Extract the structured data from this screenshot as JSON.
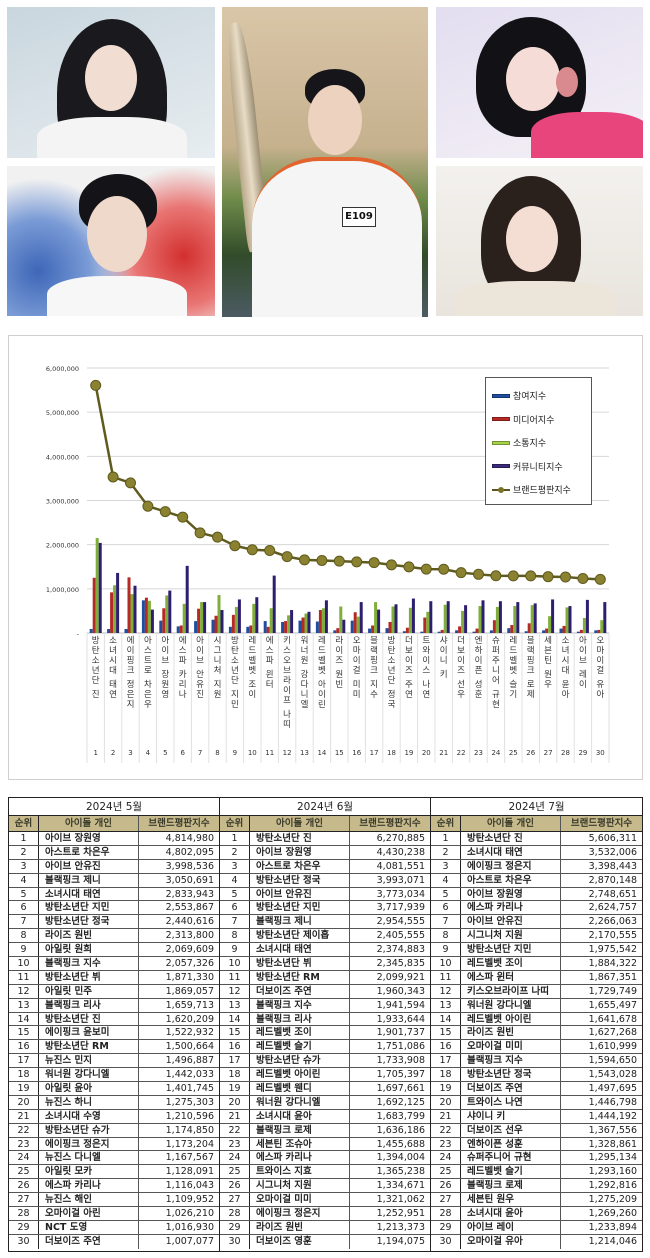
{
  "photos": [
    {
      "id": "photo-top-left",
      "description": "woman with long dark hair and bangs, white shirt"
    },
    {
      "id": "photo-bottom-left",
      "description": "man in white t-shirt with blue and red paint background"
    },
    {
      "id": "photo-center",
      "description": "man holding torch, white jersey",
      "bib": "E109"
    },
    {
      "id": "photo-top-right",
      "description": "woman with dark hair and pink flower accessory"
    },
    {
      "id": "photo-bottom-right",
      "description": "woman with bangs making V sign"
    }
  ],
  "legend": [
    {
      "label": "참여지수",
      "color": "#1f4e9e"
    },
    {
      "label": "미디어지수",
      "color": "#b52a24"
    },
    {
      "label": "소통지수",
      "color": "#7fae3a"
    },
    {
      "label": "커뮤니티지수",
      "color": "#3b2a7a"
    },
    {
      "label": "브랜드평판지수",
      "color": "#7a7326"
    }
  ],
  "chart_data": {
    "type": "bar",
    "title": "",
    "xlabel": "",
    "ylabel": "",
    "ylim": [
      0,
      6000000
    ],
    "yticks": [
      "-",
      "1,000,000",
      "2,000,000",
      "3,000,000",
      "4,000,000",
      "5,000,000",
      "6,000,000"
    ],
    "grid": true,
    "legend_position": "upper right",
    "categories": [
      "방탄소년단 진",
      "소녀시대 태연",
      "에이핑크 정은지",
      "아스트로 차은우",
      "아이브 장원영",
      "에스파 카리나",
      "아이브 안유진",
      "시그니처 지원",
      "방탄소년단 지민",
      "레드벨벳 조이",
      "에스파 윈터",
      "키스오브라이프 나띠",
      "워너원 강다니엘",
      "레드벨벳 아이린",
      "라이즈 원빈",
      "오마이걸 미미",
      "블랙핑크 지수",
      "방탄소년단 정국",
      "더보이즈 주연",
      "트와이스 나연",
      "샤이니 키",
      "더보이즈 선우",
      "엔하이픈 성훈",
      "슈퍼주니어 규현",
      "레드벨벳 슬기",
      "블랙핑크 로제",
      "세븐틴 원우",
      "소녀시대 윤아",
      "아이브 레이",
      "오마이걸 유아"
    ],
    "category_numbers": [
      "1",
      "2",
      "3",
      "4",
      "5",
      "6",
      "7",
      "8",
      "9",
      "10",
      "11",
      "12",
      "13",
      "14",
      "15",
      "16",
      "17",
      "18",
      "19",
      "20",
      "21",
      "22",
      "23",
      "24",
      "25",
      "26",
      "27",
      "28",
      "29",
      "30"
    ],
    "series": [
      {
        "name": "참여지수",
        "type": "bar",
        "values": [
          90000,
          90000,
          90000,
          740000,
          280000,
          150000,
          270000,
          300000,
          140000,
          140000,
          270000,
          250000,
          280000,
          260000,
          60000,
          280000,
          100000,
          110000,
          40000,
          30000,
          30000,
          60000,
          30000,
          60000,
          110000,
          40000,
          60000,
          100000,
          30000,
          60000
        ]
      },
      {
        "name": "미디어지수",
        "type": "bar",
        "values": [
          1250000,
          920000,
          1260000,
          800000,
          560000,
          170000,
          550000,
          390000,
          410000,
          170000,
          140000,
          270000,
          350000,
          520000,
          110000,
          470000,
          170000,
          250000,
          120000,
          350000,
          70000,
          150000,
          100000,
          290000,
          180000,
          220000,
          100000,
          160000,
          70000,
          70000
        ]
      },
      {
        "name": "소통지수",
        "type": "bar",
        "values": [
          2150000,
          1080000,
          880000,
          730000,
          850000,
          660000,
          700000,
          860000,
          590000,
          660000,
          560000,
          400000,
          440000,
          560000,
          600000,
          370000,
          700000,
          600000,
          570000,
          480000,
          640000,
          500000,
          610000,
          590000,
          610000,
          630000,
          380000,
          580000,
          340000,
          290000
        ]
      },
      {
        "name": "커뮤니티지수",
        "type": "bar",
        "values": [
          2040000,
          1360000,
          1070000,
          530000,
          960000,
          1520000,
          700000,
          520000,
          760000,
          810000,
          1300000,
          520000,
          480000,
          740000,
          300000,
          700000,
          530000,
          650000,
          780000,
          720000,
          720000,
          630000,
          740000,
          720000,
          700000,
          670000,
          760000,
          610000,
          750000,
          700000
        ]
      },
      {
        "name": "브랜드평판지수",
        "type": "line",
        "values": [
          5606311,
          3532006,
          3398443,
          2870148,
          2748651,
          2624757,
          2266063,
          2170555,
          1975542,
          1884322,
          1867351,
          1729749,
          1655497,
          1641678,
          1627268,
          1610999,
          1594650,
          1543028,
          1497695,
          1446798,
          1444192,
          1367556,
          1328861,
          1295134,
          1293160,
          1292816,
          1275209,
          1269260,
          1233894,
          1214046
        ]
      }
    ]
  },
  "table": {
    "columns": [
      "순위",
      "아이돌 개인",
      "브랜드평판지수"
    ],
    "months": [
      {
        "title": "2024년 5월",
        "rows": [
          [
            "1",
            "아이브 장원영",
            "4,814,980"
          ],
          [
            "2",
            "아스트로 차은우",
            "4,802,095"
          ],
          [
            "3",
            "아이브 안유진",
            "3,998,536"
          ],
          [
            "4",
            "블랙핑크 제니",
            "3,050,691"
          ],
          [
            "5",
            "소녀시대 태연",
            "2,833,943"
          ],
          [
            "6",
            "방탄소년단 지민",
            "2,553,867"
          ],
          [
            "7",
            "방탄소년단 정국",
            "2,440,616"
          ],
          [
            "8",
            "라이즈 원빈",
            "2,313,800"
          ],
          [
            "9",
            "아일릿 원희",
            "2,069,609"
          ],
          [
            "10",
            "블랙핑크 지수",
            "2,057,326"
          ],
          [
            "11",
            "방탄소년단 뷔",
            "1,871,330"
          ],
          [
            "12",
            "아일릿 민주",
            "1,869,057"
          ],
          [
            "13",
            "블랙핑크 리사",
            "1,659,713"
          ],
          [
            "14",
            "방탄소년단 진",
            "1,620,209"
          ],
          [
            "15",
            "에이핑크 윤보미",
            "1,522,932"
          ],
          [
            "16",
            "방탄소년단 RM",
            "1,500,664"
          ],
          [
            "17",
            "뉴진스 민지",
            "1,496,887"
          ],
          [
            "18",
            "워너원 강다니엘",
            "1,442,033"
          ],
          [
            "19",
            "아일릿 윤아",
            "1,401,745"
          ],
          [
            "20",
            "뉴진스 하니",
            "1,275,303"
          ],
          [
            "21",
            "소녀시대 수영",
            "1,210,596"
          ],
          [
            "22",
            "방탄소년단 슈가",
            "1,174,850"
          ],
          [
            "23",
            "에이핑크 정은지",
            "1,173,204"
          ],
          [
            "24",
            "뉴진스 다니엘",
            "1,167,567"
          ],
          [
            "25",
            "아일릿 모카",
            "1,128,091"
          ],
          [
            "26",
            "에스파 카리나",
            "1,116,043"
          ],
          [
            "27",
            "뉴진스 해인",
            "1,109,952"
          ],
          [
            "28",
            "오마이걸 아린",
            "1,026,210"
          ],
          [
            "29",
            "NCT 도영",
            "1,016,930"
          ],
          [
            "30",
            "더보이즈 주연",
            "1,007,077"
          ]
        ]
      },
      {
        "title": "2024년 6월",
        "rows": [
          [
            "1",
            "방탄소년단 진",
            "6,270,885"
          ],
          [
            "2",
            "아이브 장원영",
            "4,430,238"
          ],
          [
            "3",
            "아스트로 차은우",
            "4,081,551"
          ],
          [
            "4",
            "방탄소년단 정국",
            "3,993,071"
          ],
          [
            "5",
            "아이브 안유진",
            "3,773,034"
          ],
          [
            "6",
            "방탄소년단 지민",
            "3,717,939"
          ],
          [
            "7",
            "블랙핑크 제니",
            "2,954,555"
          ],
          [
            "8",
            "방탄소년단 제이홉",
            "2,405,555"
          ],
          [
            "9",
            "소녀시대 태연",
            "2,374,883"
          ],
          [
            "10",
            "방탄소년단 뷔",
            "2,345,835"
          ],
          [
            "11",
            "방탄소년단 RM",
            "2,099,921"
          ],
          [
            "12",
            "더보이즈 주연",
            "1,960,343"
          ],
          [
            "13",
            "블랙핑크 지수",
            "1,941,594"
          ],
          [
            "14",
            "블랙핑크 리사",
            "1,933,644"
          ],
          [
            "15",
            "레드벨벳 조이",
            "1,901,737"
          ],
          [
            "16",
            "레드벨벳 슬기",
            "1,751,086"
          ],
          [
            "17",
            "방탄소년단 슈가",
            "1,733,908"
          ],
          [
            "18",
            "레드벨벳 아이린",
            "1,705,397"
          ],
          [
            "19",
            "레드벨벳 웬디",
            "1,697,661"
          ],
          [
            "20",
            "워너원 강다니엘",
            "1,692,125"
          ],
          [
            "21",
            "소녀시대 윤아",
            "1,683,799"
          ],
          [
            "22",
            "블랙핑크 로제",
            "1,636,186"
          ],
          [
            "23",
            "세븐틴 조슈아",
            "1,455,688"
          ],
          [
            "24",
            "에스파 카리나",
            "1,394,004"
          ],
          [
            "25",
            "트와이스 지효",
            "1,365,238"
          ],
          [
            "26",
            "시그니처 지원",
            "1,334,671"
          ],
          [
            "27",
            "오마이걸 미미",
            "1,321,062"
          ],
          [
            "28",
            "에이핑크 정은지",
            "1,252,951"
          ],
          [
            "29",
            "라이즈 원빈",
            "1,213,373"
          ],
          [
            "30",
            "더보이즈 영훈",
            "1,194,075"
          ]
        ]
      },
      {
        "title": "2024년 7월",
        "rows": [
          [
            "1",
            "방탄소년단 진",
            "5,606,311"
          ],
          [
            "2",
            "소녀시대 태연",
            "3,532,006"
          ],
          [
            "3",
            "에이핑크 정은지",
            "3,398,443"
          ],
          [
            "4",
            "아스트로 차은우",
            "2,870,148"
          ],
          [
            "5",
            "아이브 장원영",
            "2,748,651"
          ],
          [
            "6",
            "에스파 카리나",
            "2,624,757"
          ],
          [
            "7",
            "아이브 안유진",
            "2,266,063"
          ],
          [
            "8",
            "시그니처 지원",
            "2,170,555"
          ],
          [
            "9",
            "방탄소년단 지민",
            "1,975,542"
          ],
          [
            "10",
            "레드벨벳 조이",
            "1,884,322"
          ],
          [
            "11",
            "에스파 윈터",
            "1,867,351"
          ],
          [
            "12",
            "키스오브라이프 나띠",
            "1,729,749"
          ],
          [
            "13",
            "워너원 강다니엘",
            "1,655,497"
          ],
          [
            "14",
            "레드벨벳 아이린",
            "1,641,678"
          ],
          [
            "15",
            "라이즈 원빈",
            "1,627,268"
          ],
          [
            "16",
            "오마이걸 미미",
            "1,610,999"
          ],
          [
            "17",
            "블랙핑크 지수",
            "1,594,650"
          ],
          [
            "18",
            "방탄소년단 정국",
            "1,543,028"
          ],
          [
            "19",
            "더보이즈 주연",
            "1,497,695"
          ],
          [
            "20",
            "트와이스 나연",
            "1,446,798"
          ],
          [
            "21",
            "샤이니 키",
            "1,444,192"
          ],
          [
            "22",
            "더보이즈 선우",
            "1,367,556"
          ],
          [
            "23",
            "엔하이픈 성훈",
            "1,328,861"
          ],
          [
            "24",
            "슈퍼주니어 규현",
            "1,295,134"
          ],
          [
            "25",
            "레드벨벳 슬기",
            "1,293,160"
          ],
          [
            "26",
            "블랙핑크 로제",
            "1,292,816"
          ],
          [
            "27",
            "세븐틴 원우",
            "1,275,209"
          ],
          [
            "28",
            "소녀시대 윤아",
            "1,269,260"
          ],
          [
            "29",
            "아이브 레이",
            "1,233,894"
          ],
          [
            "30",
            "오마이걸 유아",
            "1,214,046"
          ]
        ]
      }
    ]
  }
}
